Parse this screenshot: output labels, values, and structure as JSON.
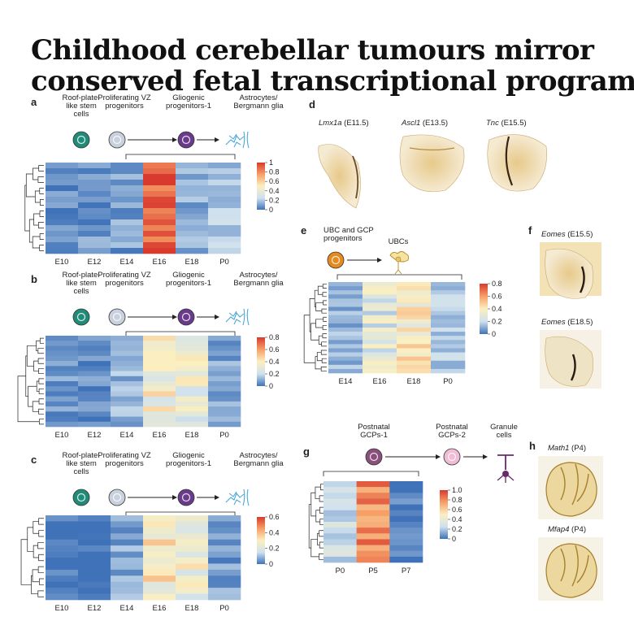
{
  "title": {
    "line1": "Childhood cerebellar tumours mirror",
    "line2": "conserved fetal transcriptional programs"
  },
  "colors": {
    "blue": "#3f72b8",
    "lightblue": "#cfe1ee",
    "yellow": "#fbefc0",
    "orange": "#f6a068",
    "red": "#d93a2e",
    "teal_cell": "#1f8b78",
    "grey_cell": "#c9d1de",
    "purple_cell": "#6a3a8c",
    "orange_cell": "#e58a1f",
    "mauve_cell": "#8a4f7a",
    "pink_cell": "#f1bcd6",
    "astro": "#4aa8d8"
  },
  "panels": {
    "a": {
      "label": "a",
      "cells": [
        "Roof-plate-\nlike stem\ncells",
        "Proliferating VZ\nprogenitors",
        "Gliogenic\nprogenitors-1",
        "Astrocytes/\nBergmann glia"
      ],
      "xlabels": [
        "E10",
        "E12",
        "E14",
        "E16",
        "E18",
        "P0"
      ],
      "ticks": [
        "1",
        "0.8",
        "0.6",
        "0.4",
        "0.2",
        "0"
      ]
    },
    "b": {
      "label": "b",
      "cells": [
        "Roof-plate-\nlike stem\ncells",
        "Proliferating VZ\nprogenitors",
        "Gliogenic\nprogenitors-1",
        "Astrocytes/\nBergmann glia"
      ],
      "xlabels": [
        "E10",
        "E12",
        "E14",
        "E16",
        "E18",
        "P0"
      ],
      "ticks": [
        "0.8",
        "0.6",
        "0.4",
        "0.2",
        "0"
      ]
    },
    "c": {
      "label": "c",
      "cells": [
        "Roof-plate-\nlike stem\ncells",
        "Proliferating VZ\nprogenitors",
        "Gliogenic\nprogenitors-1",
        "Astrocytes/\nBergmann glia"
      ],
      "xlabels": [
        "E10",
        "E12",
        "E14",
        "E16",
        "E18",
        "P0"
      ],
      "ticks": [
        "0.6",
        "0.4",
        "0.2",
        "0"
      ]
    },
    "d": {
      "label": "d",
      "images": [
        {
          "gene": "Lmx1a",
          "stage": " (E11.5)"
        },
        {
          "gene": "Ascl1",
          "stage": " (E13.5)"
        },
        {
          "gene": "Tnc",
          "stage": " (E15.5)"
        }
      ]
    },
    "e": {
      "label": "e",
      "cells": [
        "UBC and GCP\nprogenitors",
        "UBCs"
      ],
      "xlabels": [
        "E14",
        "E16",
        "E18",
        "P0"
      ],
      "ticks": [
        "0.8",
        "0.6",
        "0.4",
        "0.2",
        "0"
      ]
    },
    "f": {
      "label": "f",
      "images": [
        {
          "gene": "Eomes",
          "stage": " (E15.5)"
        },
        {
          "gene": "Eomes",
          "stage": " (E18.5)"
        }
      ]
    },
    "g": {
      "label": "g",
      "cells": [
        "Postnatal\nGCPs-1",
        "Postnatal\nGCPs-2",
        "Granule\ncells"
      ],
      "xlabels": [
        "P0",
        "P5",
        "P7"
      ],
      "ticks": [
        "1.0",
        "0.8",
        "0.6",
        "0.4",
        "0.2",
        "0"
      ]
    },
    "h": {
      "label": "h",
      "images": [
        {
          "gene": "Math1",
          "stage": " (P4)"
        },
        {
          "gene": "Mfap4",
          "stage": " (P4)"
        }
      ]
    }
  },
  "chart_data": [
    {
      "type": "heatmap",
      "panel": "a",
      "x": [
        "E10",
        "E12",
        "E14",
        "E16",
        "E18",
        "P0"
      ],
      "scale": [
        0,
        1
      ],
      "columns_mean": [
        0.05,
        0.08,
        0.1,
        0.95,
        0.12,
        0.18
      ],
      "rows": 16
    },
    {
      "type": "heatmap",
      "panel": "b",
      "x": [
        "E10",
        "E12",
        "E14",
        "E16",
        "E18",
        "P0"
      ],
      "scale": [
        0,
        0.8
      ],
      "columns_mean": [
        0.1,
        0.05,
        0.15,
        0.45,
        0.4,
        0.12
      ],
      "rows": 18
    },
    {
      "type": "heatmap",
      "panel": "c",
      "x": [
        "E10",
        "E12",
        "E14",
        "E16",
        "E18",
        "P0"
      ],
      "scale": [
        0,
        0.6
      ],
      "columns_mean": [
        0.02,
        0.02,
        0.12,
        0.5,
        0.4,
        0.1
      ],
      "rows": 14
    },
    {
      "type": "heatmap",
      "panel": "e",
      "x": [
        "E14",
        "E16",
        "E18",
        "P0"
      ],
      "scale": [
        0,
        0.8
      ],
      "columns_mean": [
        0.15,
        0.35,
        0.5,
        0.2
      ],
      "rows": 22
    },
    {
      "type": "heatmap",
      "panel": "g",
      "x": [
        "P0",
        "P5",
        "P7"
      ],
      "scale": [
        0,
        1.0
      ],
      "columns_mean": [
        0.25,
        0.8,
        0.03
      ],
      "rows": 14
    }
  ]
}
